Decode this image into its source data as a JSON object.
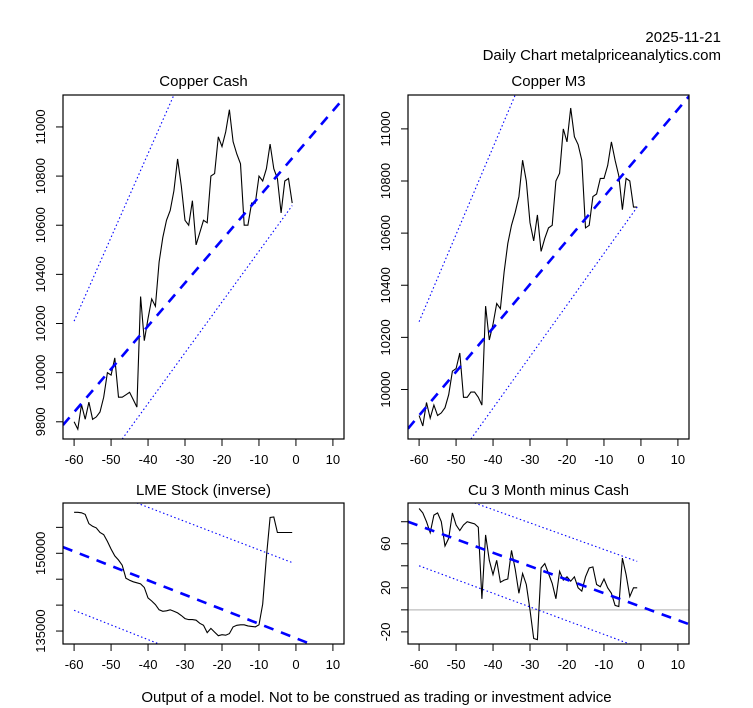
{
  "header": {
    "date": "2025-11-21",
    "subtitle": "Daily Chart metalpriceanalytics.com"
  },
  "footer": {
    "disclaimer": "Output of a model. Not to be construed as trading or investment advice"
  },
  "colors": {
    "price_line": "#000000",
    "trend_line": "#0000ff",
    "band_line": "#0000ff",
    "zero_line": "#bebebe"
  },
  "chart_data": [
    {
      "id": "copper-cash",
      "type": "line",
      "title": "Copper Cash",
      "xlabel": "",
      "ylabel": "",
      "xlim": [
        -63,
        13
      ],
      "ylim": [
        9730,
        11130
      ],
      "xticks": [
        -60,
        -50,
        -40,
        -30,
        -20,
        -10,
        0,
        10
      ],
      "xtick_labels": [
        "-60",
        "-50",
        "-40",
        "-30",
        "-20",
        "-10",
        "0",
        "10"
      ],
      "yticks": [
        9800,
        10000,
        10200,
        10400,
        10600,
        10800,
        11000
      ],
      "ytick_labels": [
        "9800",
        "10000",
        "10200",
        "10400",
        "10600",
        "10800",
        "11000"
      ],
      "grid": false,
      "series": [
        {
          "name": "price",
          "style": "solid",
          "x": [
            -60,
            -59,
            -58,
            -57,
            -56,
            -55,
            -54,
            -53,
            -52,
            -51,
            -50,
            -49,
            -48,
            -47,
            -46,
            -45,
            -44,
            -43,
            -42,
            -41,
            -40,
            -39,
            -38,
            -37,
            -36,
            -35,
            -34,
            -33,
            -32,
            -31,
            -30,
            -29,
            -28,
            -27,
            -26,
            -25,
            -24,
            -23,
            -22,
            -21,
            -20,
            -19,
            -18,
            -17,
            -16,
            -15,
            -14,
            -13,
            -12,
            -11,
            -10,
            -9,
            -8,
            -7,
            -6,
            -5,
            -4,
            -3,
            -2,
            -1
          ],
          "y": [
            9800,
            9770,
            9870,
            9810,
            9880,
            9810,
            9820,
            9840,
            9900,
            10000,
            9990,
            10060,
            9900,
            9900,
            9910,
            9920,
            9890,
            9860,
            10310,
            10130,
            10220,
            10300,
            10270,
            10450,
            10550,
            10620,
            10660,
            10740,
            10870,
            10760,
            10620,
            10600,
            10700,
            10520,
            10570,
            10620,
            10610,
            10800,
            10810,
            10960,
            10920,
            10980,
            11070,
            10940,
            10890,
            10850,
            10600,
            10600,
            10690,
            10690,
            10800,
            10780,
            10830,
            10930,
            10830,
            10790,
            10650,
            10780,
            10790,
            10690
          ]
        },
        {
          "name": "trend",
          "style": "dashed",
          "x": [
            -63,
            13
          ],
          "y": [
            9787,
            11118
          ]
        },
        {
          "name": "upper-band",
          "style": "dotted",
          "x": [
            -60,
            -33
          ],
          "y": [
            10210,
            11130
          ]
        },
        {
          "name": "lower-band",
          "style": "dotted",
          "x": [
            -47,
            -1
          ],
          "y": [
            9730,
            10680
          ]
        }
      ]
    },
    {
      "id": "copper-m3",
      "type": "line",
      "title": "Copper M3",
      "xlabel": "",
      "ylabel": "",
      "xlim": [
        -63,
        13
      ],
      "ylim": [
        9810,
        11130
      ],
      "xticks": [
        -60,
        -50,
        -40,
        -30,
        -20,
        -10,
        0,
        10
      ],
      "xtick_labels": [
        "-60",
        "-50",
        "-40",
        "-30",
        "-20",
        "-10",
        "0",
        "10"
      ],
      "yticks": [
        10000,
        10200,
        10400,
        10600,
        10800,
        11000
      ],
      "ytick_labels": [
        "10000",
        "10200",
        "10400",
        "10600",
        "10800",
        "11000"
      ],
      "grid": false,
      "series": [
        {
          "name": "price",
          "style": "solid",
          "x": [
            -60,
            -59,
            -58,
            -57,
            -56,
            -55,
            -54,
            -53,
            -52,
            -51,
            -50,
            -49,
            -48,
            -47,
            -46,
            -45,
            -44,
            -43,
            -42,
            -41,
            -40,
            -39,
            -38,
            -37,
            -36,
            -35,
            -34,
            -33,
            -32,
            -31,
            -30,
            -29,
            -28,
            -27,
            -26,
            -25,
            -24,
            -23,
            -22,
            -21,
            -20,
            -19,
            -18,
            -17,
            -16,
            -15,
            -14,
            -13,
            -12,
            -11,
            -10,
            -9,
            -8,
            -7,
            -6,
            -5,
            -4,
            -3,
            -2,
            -1
          ],
          "y": [
            9900,
            9860,
            9950,
            9890,
            9940,
            9900,
            9910,
            9930,
            9980,
            10070,
            10080,
            10140,
            9970,
            9970,
            9990,
            9990,
            9970,
            9940,
            10320,
            10190,
            10250,
            10330,
            10310,
            10450,
            10560,
            10630,
            10680,
            10740,
            10880,
            10800,
            10640,
            10570,
            10670,
            10530,
            10580,
            10620,
            10630,
            10800,
            10830,
            11000,
            10950,
            11080,
            10970,
            10940,
            10880,
            10620,
            10630,
            10740,
            10750,
            10810,
            10810,
            10860,
            10950,
            10880,
            10820,
            10690,
            10810,
            10800,
            10700,
            10700
          ]
        },
        {
          "name": "trend",
          "style": "dashed",
          "x": [
            -63,
            13
          ],
          "y": [
            9850,
            11125
          ]
        },
        {
          "name": "upper-band",
          "style": "dotted",
          "x": [
            -60,
            -34
          ],
          "y": [
            10260,
            11130
          ]
        },
        {
          "name": "lower-band",
          "style": "dotted",
          "x": [
            -46,
            -1
          ],
          "y": [
            9810,
            10700
          ]
        }
      ]
    },
    {
      "id": "lme-stock",
      "type": "line",
      "title": "LME Stock (inverse)",
      "xlabel": "",
      "ylabel": "",
      "xlim": [
        -63,
        13
      ],
      "ylim": [
        132500,
        159700
      ],
      "xticks": [
        -60,
        -50,
        -40,
        -30,
        -20,
        -10,
        0,
        10
      ],
      "xtick_labels": [
        "-60",
        "-50",
        "-40",
        "-30",
        "-20",
        "-10",
        "0",
        "10"
      ],
      "yticks": [
        135000,
        140000,
        145000,
        150000,
        155000
      ],
      "ytick_labels": [
        "135000",
        "",
        "",
        "150000",
        ""
      ],
      "grid": false,
      "series": [
        {
          "name": "stock",
          "style": "solid",
          "x": [
            -60,
            -59,
            -58,
            -57,
            -56,
            -55,
            -54,
            -53,
            -52,
            -51,
            -50,
            -49,
            -48,
            -47,
            -46,
            -45,
            -44,
            -43,
            -42,
            -41,
            -40,
            -39,
            -38,
            -37,
            -36,
            -35,
            -34,
            -33,
            -32,
            -31,
            -30,
            -29,
            -28,
            -27,
            -26,
            -25,
            -24,
            -23,
            -22,
            -21,
            -20,
            -19,
            -18,
            -17,
            -16,
            -15,
            -14,
            -13,
            -12,
            -11,
            -10,
            -9,
            -8,
            -7,
            -6,
            -5,
            -4,
            -3,
            -2,
            -1
          ],
          "y": [
            157900,
            157900,
            157800,
            157500,
            155700,
            155200,
            154900,
            154000,
            153600,
            152300,
            150800,
            149500,
            148700,
            147700,
            145200,
            144800,
            144500,
            144300,
            144100,
            143400,
            141400,
            140800,
            140100,
            139100,
            138800,
            138900,
            139100,
            138800,
            138500,
            138000,
            137400,
            137200,
            137200,
            137100,
            136500,
            136100,
            134700,
            135500,
            134800,
            134100,
            134300,
            134200,
            134500,
            135800,
            136100,
            136200,
            136200,
            136000,
            135900,
            135800,
            136200,
            140200,
            149300,
            156900,
            157000,
            154000,
            154000,
            154000,
            154000,
            154000
          ]
        },
        {
          "name": "trend",
          "style": "dashed",
          "x": [
            -63,
            4
          ],
          "y": [
            151200,
            132500
          ]
        },
        {
          "name": "upper-band",
          "style": "dotted",
          "x": [
            -43,
            -1
          ],
          "y": [
            159700,
            148200
          ]
        },
        {
          "name": "lower-band",
          "style": "dotted",
          "x": [
            -60,
            -37
          ],
          "y": [
            139000,
            132500
          ]
        }
      ]
    },
    {
      "id": "cu-3m-minus-cash",
      "type": "line",
      "title": "Cu 3 Month minus Cash",
      "xlabel": "",
      "ylabel": "",
      "xlim": [
        -63,
        13
      ],
      "ylim": [
        -31,
        97
      ],
      "xticks": [
        -60,
        -50,
        -40,
        -30,
        -20,
        -10,
        0,
        10
      ],
      "xtick_labels": [
        "-60",
        "-50",
        "-40",
        "-30",
        "-20",
        "-10",
        "0",
        "10"
      ],
      "yticks": [
        -20,
        0,
        20,
        40,
        60,
        80
      ],
      "ytick_labels": [
        "-20",
        "",
        "20",
        "",
        "60",
        ""
      ],
      "grid": false,
      "hline": 0,
      "series": [
        {
          "name": "spread",
          "style": "solid",
          "x": [
            -60,
            -59,
            -58,
            -57,
            -56,
            -55,
            -54,
            -53,
            -52,
            -51,
            -50,
            -49,
            -48,
            -47,
            -46,
            -45,
            -44,
            -43,
            -42,
            -41,
            -40,
            -39,
            -38,
            -37,
            -36,
            -35,
            -34,
            -33,
            -32,
            -31,
            -30,
            -29,
            -28,
            -27,
            -26,
            -25,
            -24,
            -23,
            -22,
            -21,
            -20,
            -19,
            -18,
            -17,
            -16,
            -15,
            -14,
            -13,
            -12,
            -11,
            -10,
            -9,
            -8,
            -7,
            -6,
            -5,
            -4,
            -3,
            -2,
            -1
          ],
          "y": [
            92,
            88,
            80,
            70,
            86,
            88,
            80,
            58,
            65,
            88,
            77,
            72,
            77,
            80,
            79,
            78,
            75,
            10,
            68,
            45,
            32,
            45,
            25,
            27,
            28,
            54,
            37,
            15,
            33,
            23,
            0,
            -26,
            -27,
            38,
            42,
            33,
            24,
            10,
            35,
            27,
            30,
            26,
            30,
            20,
            17,
            30,
            38,
            39,
            23,
            21,
            28,
            20,
            15,
            4,
            3,
            47,
            32,
            12,
            20,
            20
          ]
        },
        {
          "name": "trend",
          "style": "dashed",
          "x": [
            -63,
            13
          ],
          "y": [
            80,
            -13
          ]
        },
        {
          "name": "upper-band",
          "style": "dotted",
          "x": [
            -45,
            -1
          ],
          "y": [
            97,
            44
          ]
        },
        {
          "name": "lower-band",
          "style": "dotted",
          "x": [
            -60,
            -3
          ],
          "y": [
            40,
            -31
          ]
        }
      ]
    }
  ]
}
